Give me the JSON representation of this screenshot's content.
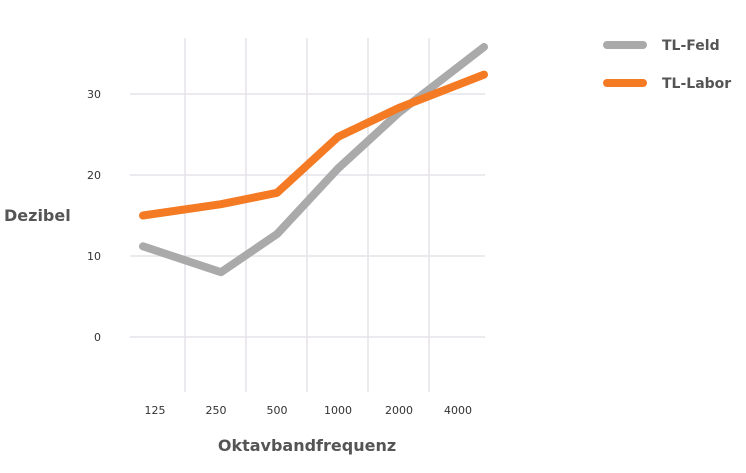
{
  "chart_data": {
    "type": "line",
    "categories": [
      "125",
      "250",
      "500",
      "1000",
      "2000",
      "4000"
    ],
    "xlabel": "Oktavbandfrequenz",
    "ylabel": "Dezibel",
    "yticks": [
      "0",
      "10",
      "20",
      "30"
    ],
    "ylim": [
      -6.5,
      37.5
    ],
    "grid": true,
    "legend_position": "top-right",
    "series": [
      {
        "name": "TL-Feld",
        "color": "#aaaaaa",
        "values": [
          11.2,
          8.0,
          12.7,
          20.8,
          27.7,
          35.8
        ]
      },
      {
        "name": "TL-Labor",
        "color": "#f47a23",
        "values": [
          15.0,
          16.4,
          17.8,
          24.7,
          28.3,
          32.4
        ]
      }
    ]
  }
}
